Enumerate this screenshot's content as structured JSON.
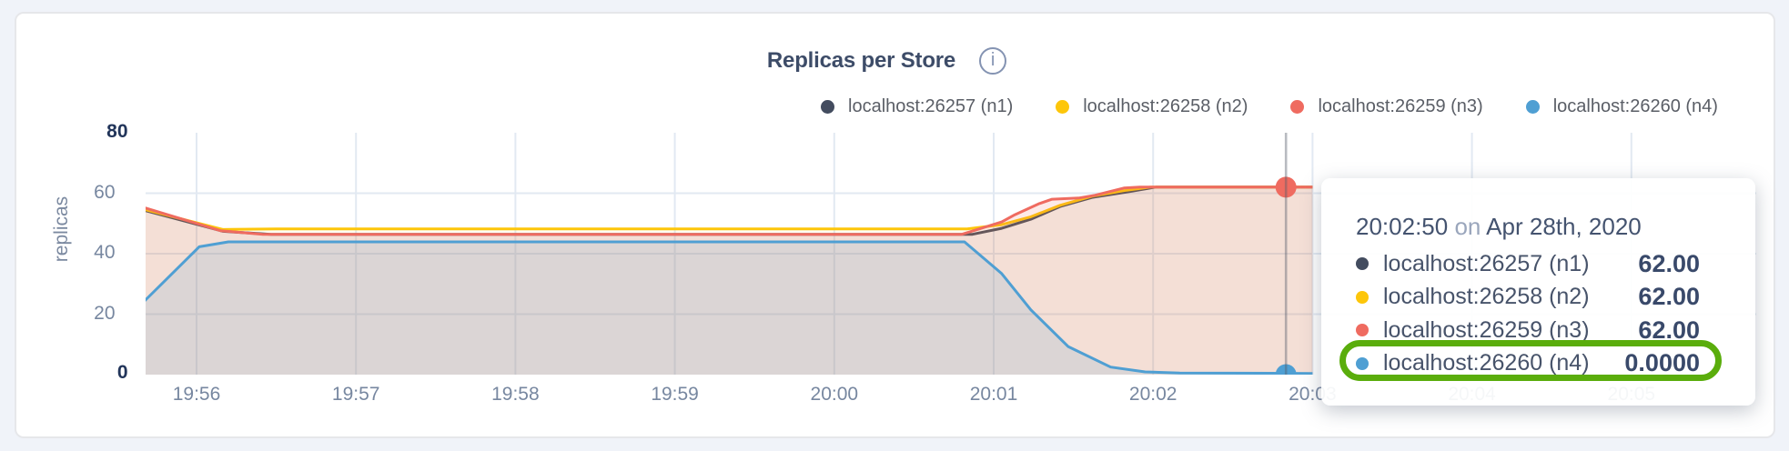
{
  "header": {
    "title": "Replicas per Store",
    "info_icon": "i"
  },
  "colors": {
    "page_background": "#f0f3f9",
    "card_background": "#ffffff",
    "gridline": "#e2e9f2",
    "crosshair": "#565d6b",
    "axis_tick_text": "#7787a0",
    "axis_minmax_text": "#22355a",
    "highlight_ring": "#5aad0c"
  },
  "legend": [
    {
      "label": "localhost:26257 (n1)",
      "color": "#434c5f"
    },
    {
      "label": "localhost:26258 (n2)",
      "color": "#fdc60a"
    },
    {
      "label": "localhost:26259 (n3)",
      "color": "#ef6b60"
    },
    {
      "label": "localhost:26260 (n4)",
      "color": "#4f9fd3"
    }
  ],
  "chart_data": {
    "type": "area",
    "title": "Replicas per Store",
    "xlabel": "",
    "ylabel": "replicas",
    "ylim": [
      0,
      80
    ],
    "y_ticks": [
      0,
      20,
      40,
      60,
      80
    ],
    "x_ticks": [
      "19:56",
      "19:57",
      "19:58",
      "19:59",
      "20:00",
      "20:01",
      "20:02",
      "20:03",
      "20:04",
      "20:05"
    ],
    "x_range": [
      "19:55:40",
      "20:03:00"
    ],
    "grid": true,
    "legend_position": "top",
    "series": [
      {
        "name": "localhost:26257 (n1)",
        "color": "#434c5f",
        "fill_opacity": 0.05,
        "points": [
          [
            "19:55:40",
            54.4
          ],
          [
            "19:56:10",
            47.4
          ],
          [
            "19:56:28",
            46.4
          ],
          [
            "20:00:52",
            46.4
          ],
          [
            "20:01:03",
            48.4
          ],
          [
            "20:01:14",
            51.4
          ],
          [
            "20:01:25",
            55.6
          ],
          [
            "20:01:37",
            58.6
          ],
          [
            "20:01:51",
            60.5
          ],
          [
            "20:02:01",
            62
          ],
          [
            "20:03:00",
            62
          ]
        ]
      },
      {
        "name": "localhost:26258 (n2)",
        "color": "#fdc60a",
        "fill_opacity": 0.055,
        "points": [
          [
            "19:55:40",
            54.7
          ],
          [
            "19:56:10",
            48.0
          ],
          [
            "19:56:30",
            48.2
          ],
          [
            "20:00:50",
            48.2
          ],
          [
            "20:01:03",
            49.6
          ],
          [
            "20:01:14",
            52.2
          ],
          [
            "20:01:25",
            56.0
          ],
          [
            "20:01:37",
            59.0
          ],
          [
            "20:01:50",
            61.0
          ],
          [
            "20:01:59",
            62
          ],
          [
            "20:03:00",
            62
          ]
        ]
      },
      {
        "name": "localhost:26259 (n3)",
        "color": "#ef6b60",
        "fill_opacity": 0.145,
        "points": [
          [
            "19:55:40",
            55.3
          ],
          [
            "19:56:09",
            47.6
          ],
          [
            "19:56:25",
            46.4
          ],
          [
            "19:56:48",
            46.4
          ],
          [
            "20:00:48",
            46.4
          ],
          [
            "20:01:03",
            50.5
          ],
          [
            "20:01:08",
            52.9
          ],
          [
            "20:01:17",
            56.5
          ],
          [
            "20:01:22",
            58.0
          ],
          [
            "20:01:32",
            58.4
          ],
          [
            "20:01:38",
            59.3
          ],
          [
            "20:01:49",
            61.7
          ],
          [
            "20:01:55",
            62
          ],
          [
            "20:03:00",
            62
          ]
        ]
      },
      {
        "name": "localhost:26260 (n4)",
        "color": "#4f9fd3",
        "fill_opacity": 0.15,
        "points": [
          [
            "19:55:40",
            24.0
          ],
          [
            "19:56:01",
            42.3
          ],
          [
            "19:56:12",
            43.9
          ],
          [
            "20:00:49",
            43.9
          ],
          [
            "20:01:03",
            33.4
          ],
          [
            "20:01:14",
            21.4
          ],
          [
            "20:01:28",
            9.3
          ],
          [
            "20:01:44",
            2.5
          ],
          [
            "20:01:57",
            0.9
          ],
          [
            "20:02:10",
            0.55
          ],
          [
            "20:03:00",
            0.4
          ]
        ]
      }
    ],
    "crosshair": {
      "time": "20:02:50",
      "points": [
        {
          "series": "localhost:26259 (n3)",
          "value": 62,
          "color": "#ef6b60"
        },
        {
          "series": "localhost:26260 (n4)",
          "value": 0,
          "color": "#4f9fd3"
        }
      ]
    }
  },
  "tooltip": {
    "time": "20:02:50",
    "on_word": "on",
    "date": "Apr 28th, 2020",
    "rows": [
      {
        "label": "localhost:26257 (n1)",
        "color": "#434c5f",
        "value": "62.00",
        "highlighted": false
      },
      {
        "label": "localhost:26258 (n2)",
        "color": "#fdc60a",
        "value": "62.00",
        "highlighted": false
      },
      {
        "label": "localhost:26259 (n3)",
        "color": "#ef6b60",
        "value": "62.00",
        "highlighted": false
      },
      {
        "label": "localhost:26260 (n4)",
        "color": "#4f9fd3",
        "value": "0.0000",
        "highlighted": true
      }
    ]
  }
}
